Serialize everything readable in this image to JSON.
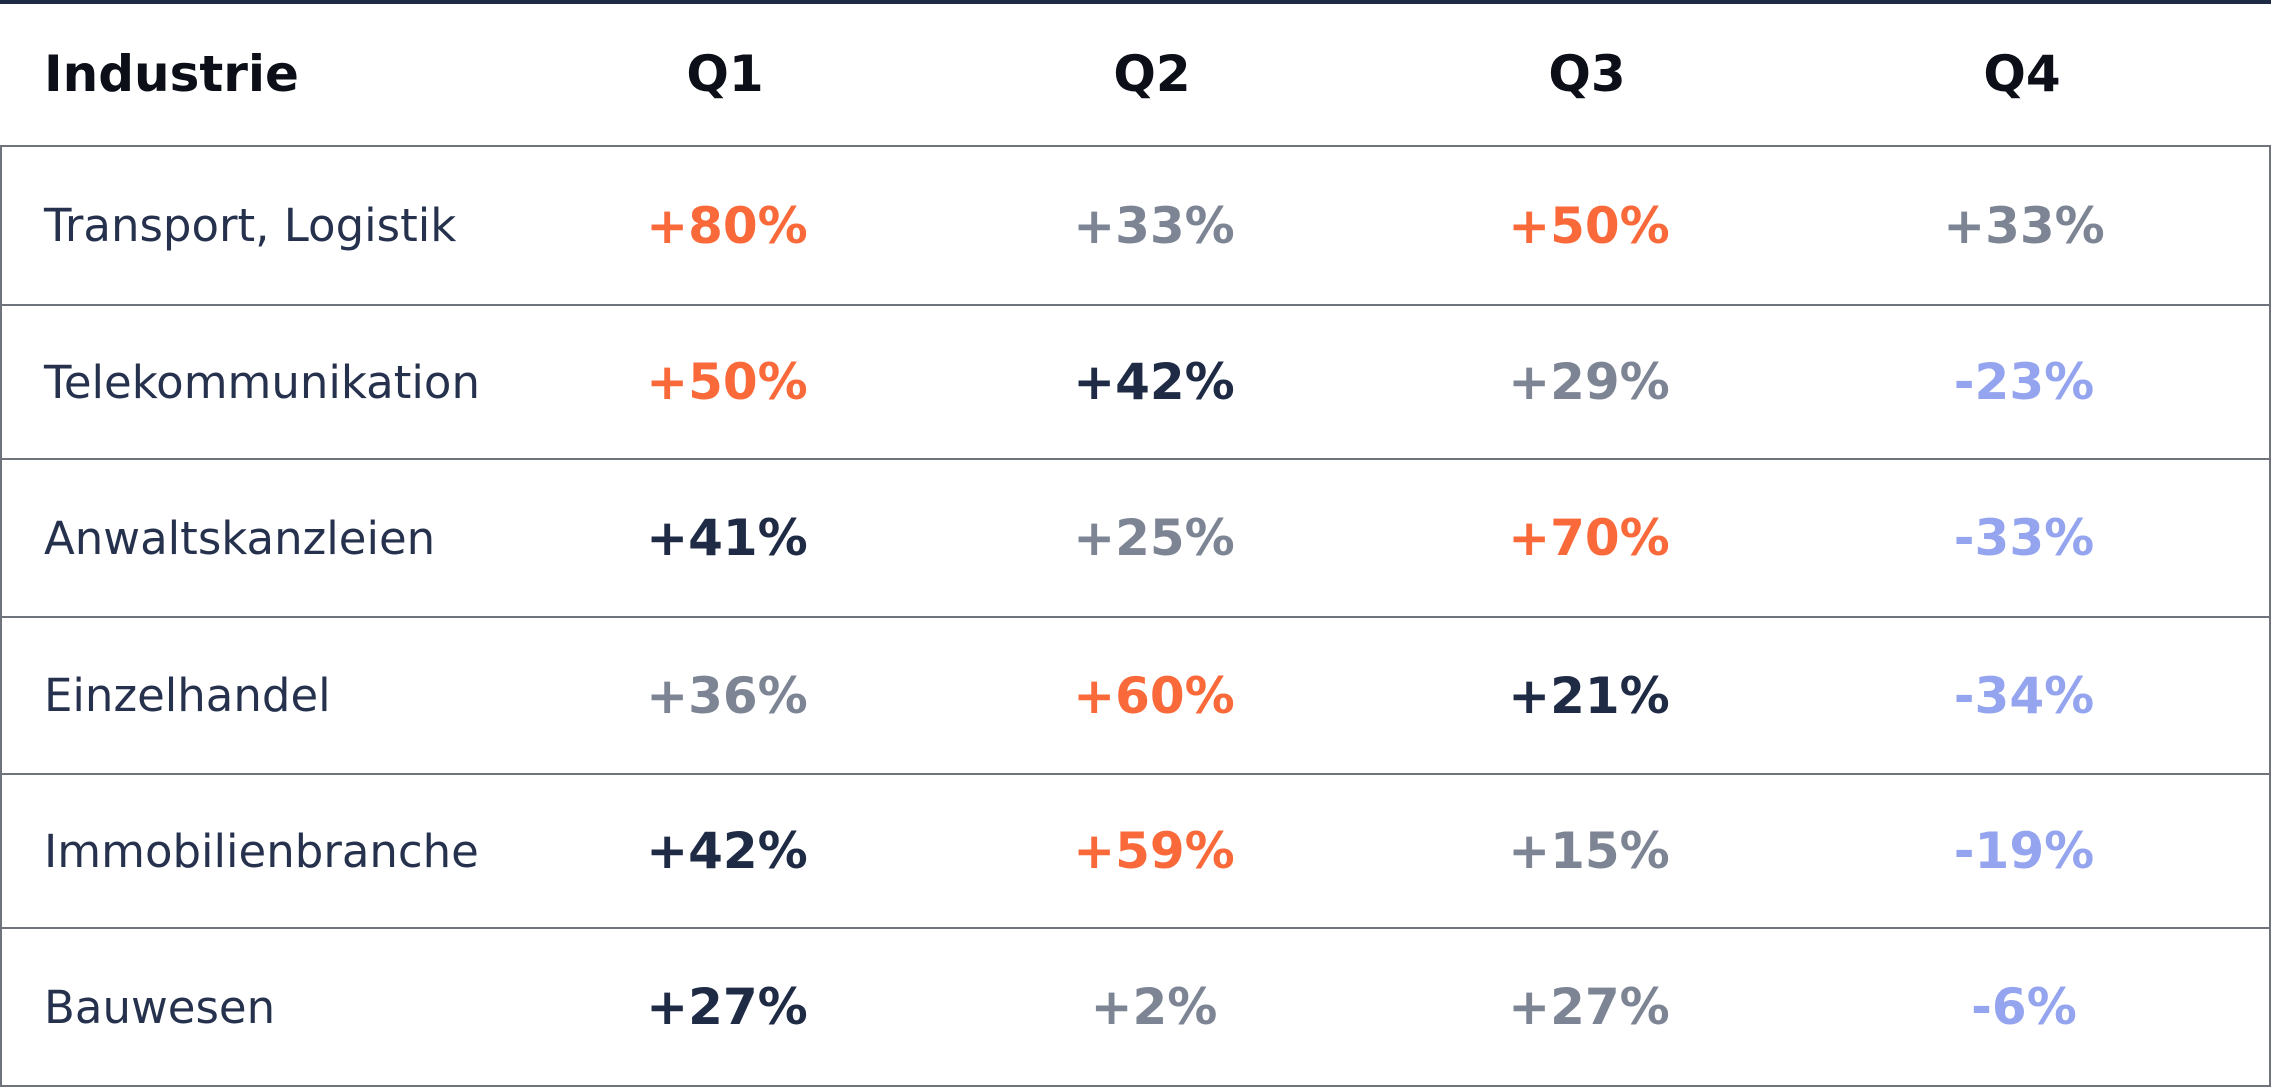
{
  "chart_data": {
    "type": "table",
    "columns": [
      "Industrie",
      "Q1",
      "Q2",
      "Q3",
      "Q4"
    ],
    "rows": [
      {
        "industry": "Transport, Logistik",
        "values": [
          "+80%",
          "+33%",
          "+50%",
          "+33%"
        ],
        "styles": [
          "orange",
          "gray",
          "orange",
          "gray"
        ]
      },
      {
        "industry": "Telekommunikation",
        "values": [
          "+50%",
          "+42%",
          "+29%",
          "-23%"
        ],
        "styles": [
          "orange",
          "navy",
          "gray",
          "blue"
        ]
      },
      {
        "industry": "Anwaltskanzleien",
        "values": [
          "+41%",
          "+25%",
          "+70%",
          "-33%"
        ],
        "styles": [
          "navy",
          "gray",
          "orange",
          "blue"
        ]
      },
      {
        "industry": "Einzelhandel",
        "values": [
          "+36%",
          "+60%",
          "+21%",
          "-34%"
        ],
        "styles": [
          "gray",
          "orange",
          "navy",
          "blue"
        ]
      },
      {
        "industry": "Immobilienbranche",
        "values": [
          "+42%",
          "+59%",
          "+15%",
          "-19%"
        ],
        "styles": [
          "navy",
          "orange",
          "gray",
          "blue"
        ]
      },
      {
        "industry": "Bauwesen",
        "values": [
          "+27%",
          "+2%",
          "+27%",
          "-6%"
        ],
        "styles": [
          "navy",
          "gray",
          "gray",
          "blue"
        ]
      }
    ]
  },
  "colors": {
    "orange": "#f9693a",
    "gray": "#7d8594",
    "navy": "#1f2b45",
    "blue": "#94a4ee"
  }
}
